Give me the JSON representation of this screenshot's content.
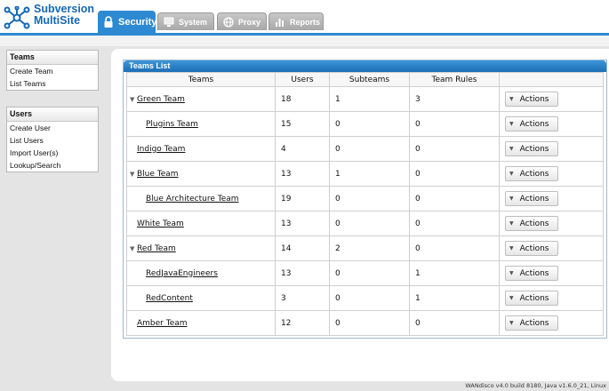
{
  "app": {
    "logo_line1": "Subversion",
    "logo_line2": "MultiSite"
  },
  "tabs": [
    {
      "label": "Security",
      "icon": "lock-icon",
      "active": true
    },
    {
      "label": "System",
      "icon": "monitor-icon",
      "active": false
    },
    {
      "label": "Proxy",
      "icon": "globe-icon",
      "active": false
    },
    {
      "label": "Reports",
      "icon": "bar-chart-icon",
      "active": false
    }
  ],
  "sidebar": {
    "teams": {
      "title": "Teams",
      "items": [
        "Create Team",
        "List Teams"
      ]
    },
    "users": {
      "title": "Users",
      "items": [
        "Create User",
        "List Users",
        "Import User(s)",
        "Lookup/Search"
      ]
    }
  },
  "teams_list": {
    "title": "Teams List",
    "columns": [
      "Teams",
      "Users",
      "Subteams",
      "Team Rules",
      ""
    ],
    "action_label": "Actions",
    "rows": [
      {
        "name": "Green Team",
        "users": "18",
        "subteams": "1",
        "rules": "3",
        "expandable": true,
        "child": false
      },
      {
        "name": "Plugins Team",
        "users": "15",
        "subteams": "0",
        "rules": "0",
        "expandable": false,
        "child": true
      },
      {
        "name": "Indigo Team",
        "users": "4",
        "subteams": "0",
        "rules": "0",
        "expandable": false,
        "child": false
      },
      {
        "name": "Blue Team",
        "users": "13",
        "subteams": "1",
        "rules": "0",
        "expandable": true,
        "child": false
      },
      {
        "name": "Blue Architecture Team",
        "users": "19",
        "subteams": "0",
        "rules": "0",
        "expandable": false,
        "child": true
      },
      {
        "name": "White Team",
        "users": "13",
        "subteams": "0",
        "rules": "0",
        "expandable": false,
        "child": false
      },
      {
        "name": "Red Team",
        "users": "14",
        "subteams": "2",
        "rules": "0",
        "expandable": true,
        "child": false
      },
      {
        "name": "RedJavaEngineers",
        "users": "13",
        "subteams": "0",
        "rules": "1",
        "expandable": false,
        "child": true
      },
      {
        "name": "RedContent",
        "users": "3",
        "subteams": "0",
        "rules": "1",
        "expandable": false,
        "child": true
      },
      {
        "name": "Amber Team",
        "users": "12",
        "subteams": "0",
        "rules": "0",
        "expandable": false,
        "child": false
      }
    ]
  },
  "footer": {
    "text": "WANdisco v4.0 build 8180, Java v1.6.0_21, Linux"
  },
  "colors": {
    "accent": "#2d8ad2",
    "logo": "#1568b4",
    "list_header": "#1c6fb6"
  }
}
